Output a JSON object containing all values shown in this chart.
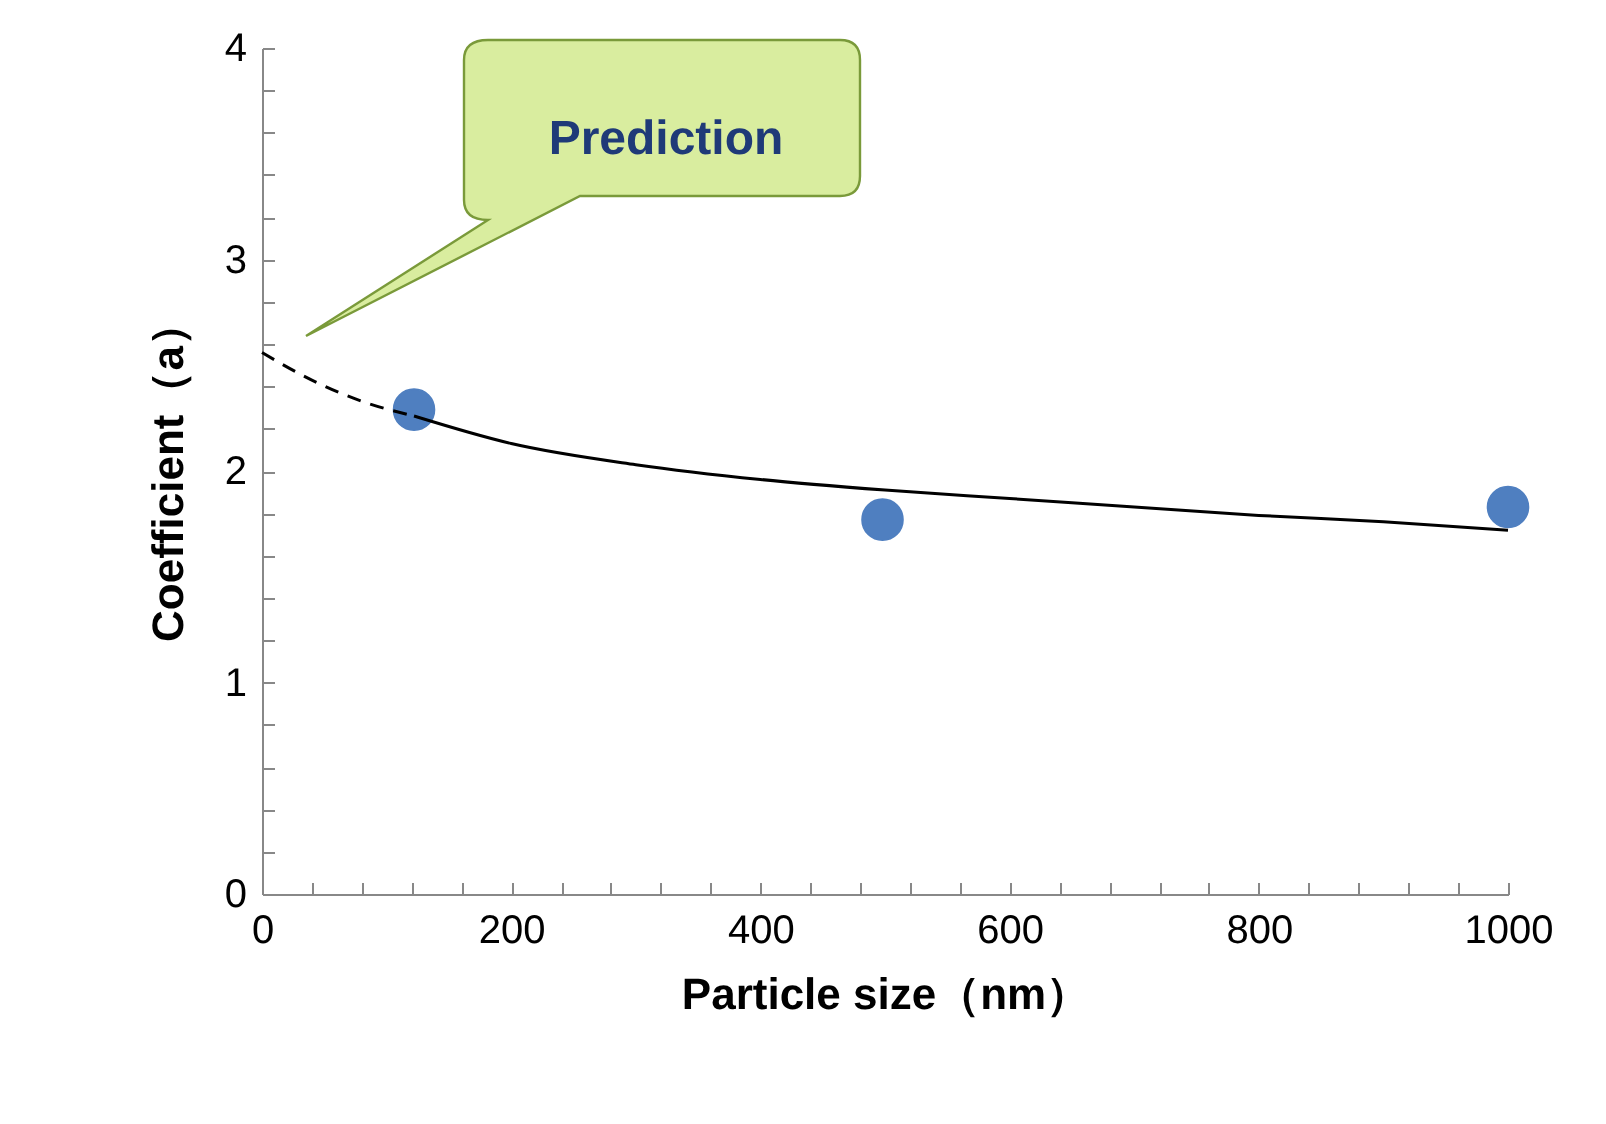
{
  "chart_data": {
    "type": "scatter",
    "xlabel": "Particle size（nm）",
    "ylabel": "Coefficient（a）",
    "annotations": [
      "Prediction"
    ],
    "series": [
      {
        "color": "#4f7fc0",
        "marker": "circle",
        "x": [
          122,
          498,
          1000
        ],
        "values": [
          2.29,
          1.77,
          1.83
        ]
      },
      {
        "type": "line",
        "color": "#000000",
        "line_style": "dashed",
        "marker": "none",
        "x": [
          0,
          40,
          80,
          122
        ],
        "values": [
          2.56,
          2.43,
          2.33,
          2.26
        ]
      },
      {
        "type": "line",
        "color": "#000000",
        "line_style": "solid",
        "marker": "none",
        "x": [
          122,
          200,
          300,
          400,
          500,
          600,
          700,
          800,
          900,
          1000
        ],
        "values": [
          2.26,
          2.13,
          2.03,
          1.96,
          1.91,
          1.87,
          1.83,
          1.79,
          1.76,
          1.72
        ]
      }
    ],
    "xlim": [
      0,
      1000
    ],
    "ylim": [
      0,
      4
    ],
    "xticks": [
      0,
      {
        "value": 40,
        "label": null
      },
      {
        "value": 80,
        "label": null
      },
      {
        "value": 120,
        "label": null
      },
      {
        "value": 160,
        "label": null
      },
      200,
      {
        "value": 240,
        "label": null
      },
      {
        "value": 280,
        "label": null
      },
      {
        "value": 320,
        "label": null
      },
      {
        "value": 360,
        "label": null
      },
      400,
      {
        "value": 440,
        "label": null
      },
      {
        "value": 480,
        "label": null
      },
      {
        "value": 520,
        "label": null
      },
      {
        "value": 560,
        "label": null
      },
      600,
      {
        "value": 640,
        "label": null
      },
      {
        "value": 680,
        "label": null
      },
      {
        "value": 720,
        "label": null
      },
      {
        "value": 760,
        "label": null
      },
      800,
      {
        "value": 840,
        "label": null
      },
      {
        "value": 880,
        "label": null
      },
      {
        "value": 920,
        "label": null
      },
      {
        "value": 960,
        "label": null
      },
      1000
    ],
    "yticks": [
      0,
      {
        "value": 0.2,
        "label": null
      },
      {
        "value": 0.4,
        "label": null
      },
      {
        "value": 0.6,
        "label": null
      },
      {
        "value": 0.8,
        "label": null
      },
      1,
      {
        "value": 1.2,
        "label": null
      },
      {
        "value": 1.4,
        "label": null
      },
      {
        "value": 1.6,
        "label": null
      },
      {
        "value": 1.8,
        "label": null
      },
      2,
      {
        "value": 2.2,
        "label": null
      },
      {
        "value": 2.4,
        "label": null
      },
      {
        "value": 2.6,
        "label": null
      },
      {
        "value": 2.8,
        "label": null
      },
      3,
      {
        "value": 3.2,
        "label": null
      },
      {
        "value": 3.4,
        "label": null
      },
      {
        "value": 3.6,
        "label": null
      },
      {
        "value": 3.8,
        "label": null
      },
      4
    ],
    "grid": false
  }
}
